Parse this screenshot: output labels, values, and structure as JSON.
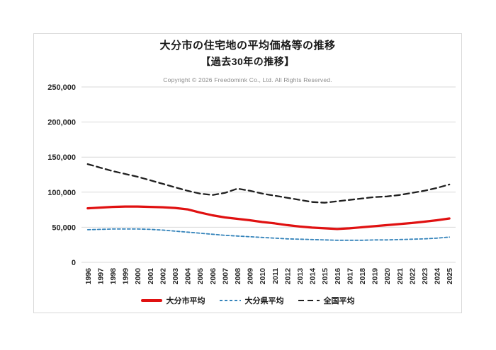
{
  "header": {
    "title": "大分市の住宅地の平均価格等の推移",
    "subtitle": "【過去30年の推移】",
    "copyright": "Copyright © 2026 Freedomink Co., Ltd. All Rights Reserved."
  },
  "colors": {
    "grid": "#d9d9d9",
    "axis_text": "#262626",
    "border": "#d9d9d9",
    "copyright_text": "#8c8c8c"
  },
  "chart_data": {
    "type": "line",
    "title": "大分市の住宅地の平均価格等の推移",
    "subtitle": "【過去30年の推移】",
    "xlabel": "",
    "ylabel": "",
    "ylim": [
      0,
      250000
    ],
    "y_ticks": [
      0,
      50000,
      100000,
      150000,
      200000,
      250000
    ],
    "grid": true,
    "legend_position": "bottom",
    "categories": [
      "1996",
      "1997",
      "1998",
      "1999",
      "2000",
      "2001",
      "2002",
      "2003",
      "2004",
      "2005",
      "2006",
      "2007",
      "2008",
      "2009",
      "2010",
      "2011",
      "2012",
      "2013",
      "2014",
      "2015",
      "2016",
      "2017",
      "2018",
      "2019",
      "2020",
      "2021",
      "2022",
      "2023",
      "2024",
      "2025"
    ],
    "series": [
      {
        "name": "大分市平均",
        "color": "#e01111",
        "line_style": "solid",
        "values": [
          77000,
          78000,
          79000,
          79500,
          79500,
          79000,
          78500,
          77500,
          75500,
          71000,
          67000,
          64000,
          62000,
          60000,
          57500,
          55500,
          53000,
          51000,
          49500,
          48500,
          47500,
          48500,
          50000,
          51500,
          53000,
          54500,
          56000,
          58000,
          60000,
          62500
        ]
      },
      {
        "name": "大分県平均",
        "color": "#3584bb",
        "line_style": "dashed-short",
        "values": [
          46500,
          47000,
          47500,
          47500,
          47500,
          47000,
          46000,
          44500,
          43000,
          41500,
          40000,
          38500,
          37500,
          36500,
          35500,
          34500,
          33500,
          33000,
          32500,
          32000,
          31500,
          31500,
          31500,
          32000,
          32000,
          32500,
          33000,
          33500,
          34500,
          36000
        ]
      },
      {
        "name": "全国平均",
        "color": "#1f1f1f",
        "line_style": "dashed-long",
        "values": [
          140000,
          135000,
          130000,
          126000,
          122000,
          117000,
          112000,
          107000,
          102000,
          98000,
          96000,
          99000,
          105000,
          102000,
          98000,
          95000,
          92000,
          89000,
          86000,
          85000,
          87000,
          89000,
          91000,
          93000,
          94000,
          96000,
          99000,
          102000,
          106000,
          111000
        ]
      }
    ]
  }
}
